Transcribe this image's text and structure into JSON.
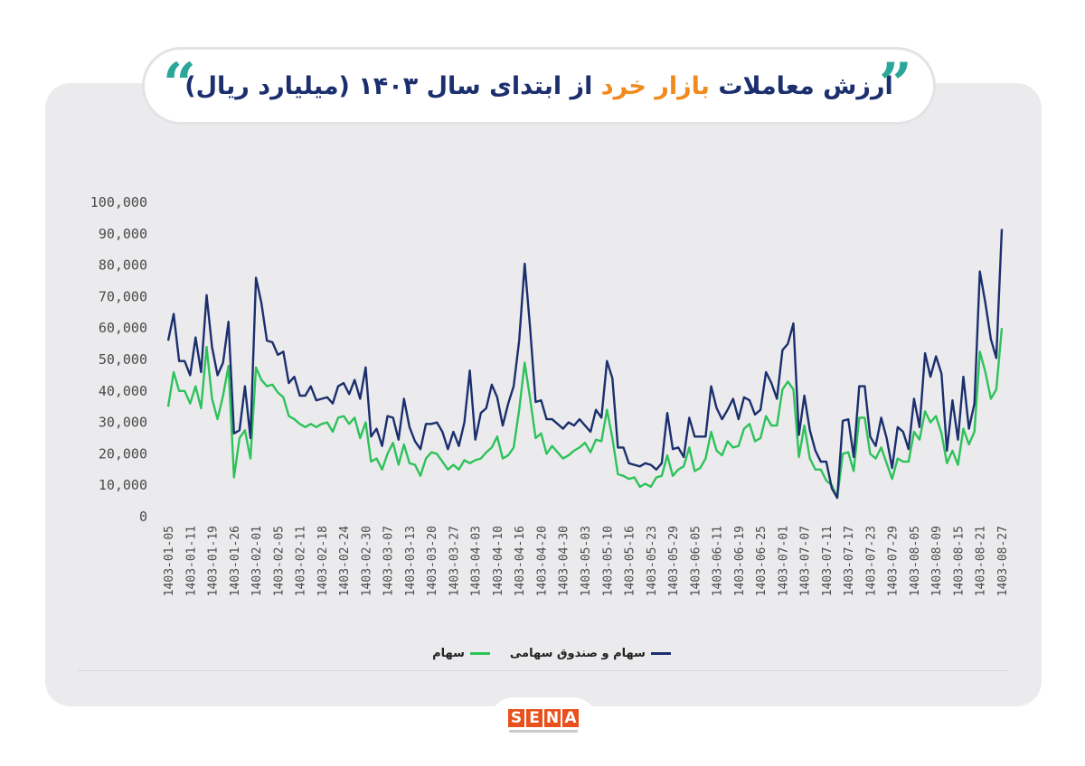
{
  "title": {
    "part_blue_1": "ارزش معاملات",
    "part_orange": "بازار خرد",
    "part_blue_2": "از ابتدای سال ۱۴۰۳ (میلیارد ریال)"
  },
  "logo": {
    "text": "SENA"
  },
  "colors": {
    "navy": "#1b2f6e",
    "green": "#2ec25a",
    "orange": "#f08a1c",
    "teal": "#2ba79a",
    "logo": "#e8501d"
  },
  "chart_data": {
    "type": "line",
    "ylim": [
      0,
      100000
    ],
    "y_ticks": [
      "0",
      "10,000",
      "20,000",
      "30,000",
      "40,000",
      "50,000",
      "60,000",
      "70,000",
      "80,000",
      "90,000",
      "100,000"
    ],
    "x_tick_labels": [
      "1403-01-05",
      "1403-01-11",
      "1403-01-19",
      "1403-01-26",
      "1403-02-01",
      "1403-02-05",
      "1403-02-11",
      "1403-02-18",
      "1403-02-24",
      "1403-02-30",
      "1403-03-07",
      "1403-03-13",
      "1403-03-20",
      "1403-03-27",
      "1403-04-03",
      "1403-04-10",
      "1403-04-16",
      "1403-04-20",
      "1403-04-30",
      "1403-05-03",
      "1403-05-10",
      "1403-05-16",
      "1403-05-23",
      "1403-05-29",
      "1403-06-05",
      "1403-06-11",
      "1403-06-19",
      "1403-06-25",
      "1403-07-01",
      "1403-07-07",
      "1403-07-11",
      "1403-07-17",
      "1403-07-23",
      "1403-07-29",
      "1403-08-05",
      "1403-08-09",
      "1403-08-15",
      "1403-08-21",
      "1403-08-27"
    ],
    "legend_position": "bottom",
    "series": [
      {
        "name": "سهام و صندوق سهامی",
        "color": "#1b2f6e",
        "values": [
          56000,
          64500,
          49500,
          49500,
          45000,
          57000,
          46000,
          70500,
          54000,
          45000,
          49000,
          62000,
          26500,
          27500,
          41500,
          25000,
          76000,
          68000,
          56000,
          55500,
          51500,
          52500,
          42500,
          44500,
          38500,
          38500,
          41500,
          37000,
          37500,
          38000,
          36000,
          41500,
          42500,
          39000,
          43500,
          37500,
          47500,
          25500,
          28000,
          22500,
          32000,
          31500,
          24500,
          37500,
          28500,
          24000,
          21500,
          29500,
          29500,
          30000,
          27000,
          21500,
          27000,
          22500,
          30000,
          46500,
          24500,
          33000,
          34500,
          42000,
          38000,
          29000,
          36000,
          41500,
          56000,
          80500,
          60000,
          36500,
          37000,
          31000,
          31000,
          29500,
          28000,
          30000,
          29000,
          31000,
          29000,
          27000,
          34000,
          31500,
          49500,
          44000,
          22000,
          22000,
          17000,
          16500,
          16000,
          17000,
          16500,
          15000,
          17000,
          33000,
          21500,
          22000,
          19000,
          31500,
          25500,
          25500,
          25500,
          41500,
          34500,
          31000,
          34000,
          37500,
          31000,
          38000,
          37000,
          32500,
          34000,
          46000,
          42500,
          37500,
          53000,
          55000,
          61500,
          26000,
          38500,
          27500,
          21000,
          17500,
          17500,
          9000,
          6000,
          30500,
          31000,
          19000,
          41500,
          41500,
          25500,
          22500,
          31500,
          25000,
          15500,
          28500,
          27000,
          21500,
          37500,
          28500,
          52000,
          44500,
          51000,
          45500,
          21000,
          37000,
          24500,
          44500,
          28000,
          36000,
          78000,
          68000,
          56500,
          50500,
          91500
        ]
      },
      {
        "name": "سهام",
        "color": "#2ec25a",
        "values": [
          35000,
          46000,
          40000,
          40000,
          36000,
          41500,
          34500,
          54000,
          37500,
          31000,
          38500,
          48000,
          12500,
          25000,
          27500,
          18500,
          47500,
          43500,
          41500,
          42000,
          39500,
          38000,
          32000,
          31000,
          29500,
          28500,
          29500,
          28500,
          29500,
          30000,
          27000,
          31500,
          32000,
          29500,
          31500,
          25000,
          30000,
          17500,
          18500,
          15000,
          20000,
          23500,
          16500,
          23000,
          17000,
          16500,
          13000,
          18500,
          20500,
          20000,
          17500,
          15000,
          16500,
          15000,
          18000,
          17000,
          18000,
          18500,
          20500,
          22000,
          25500,
          18500,
          19500,
          22000,
          34000,
          49000,
          37500,
          25000,
          26500,
          20000,
          22500,
          20500,
          18500,
          19500,
          21000,
          22000,
          23500,
          20500,
          24500,
          24000,
          34000,
          25000,
          13500,
          13000,
          12000,
          12500,
          9500,
          10500,
          9500,
          12500,
          13000,
          19500,
          13000,
          15000,
          16000,
          22000,
          14500,
          15500,
          18500,
          27000,
          21000,
          19500,
          24000,
          22000,
          22500,
          28000,
          29500,
          24000,
          25000,
          32000,
          29000,
          29000,
          40500,
          43000,
          40500,
          19000,
          29000,
          18500,
          15000,
          15000,
          11500,
          10000,
          6000,
          20000,
          20500,
          14500,
          31500,
          31500,
          20000,
          18500,
          22000,
          17000,
          12000,
          18500,
          17500,
          17500,
          27000,
          24500,
          33500,
          30000,
          32000,
          26500,
          17000,
          21000,
          16500,
          28000,
          23000,
          27000,
          52500,
          46000,
          37500,
          40500,
          60000
        ]
      }
    ]
  }
}
